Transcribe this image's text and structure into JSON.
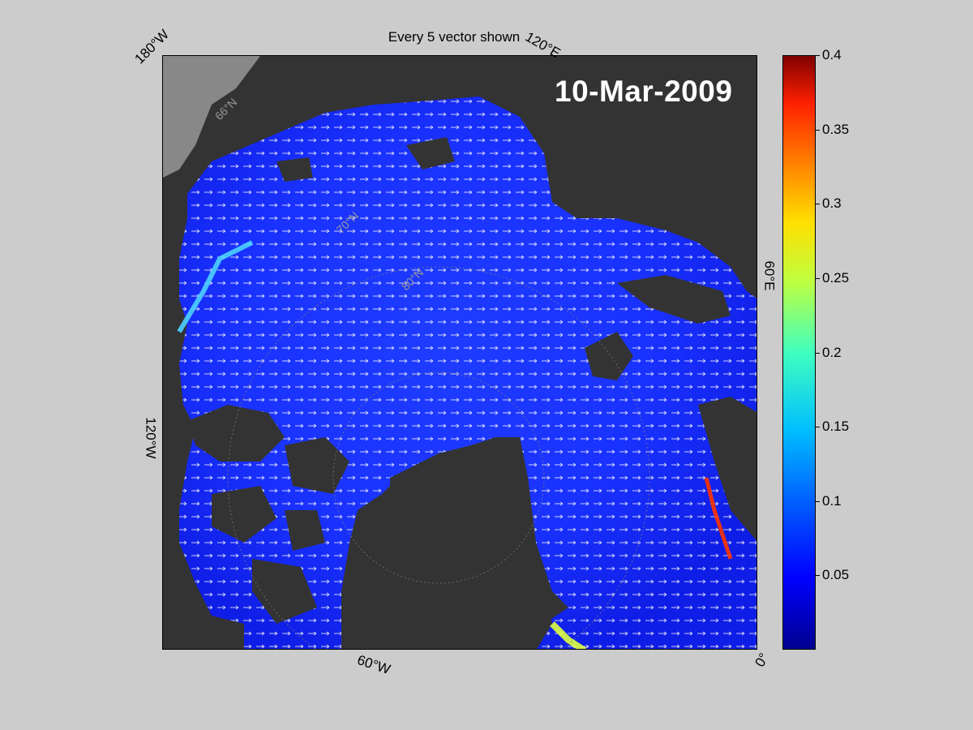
{
  "title": "Every 5 vector shown",
  "date_label": "10-Mar-2009",
  "edge_labels": {
    "top_left": "180°W",
    "top_right": "120°E",
    "right": "60°E",
    "left": "120°W",
    "bottom": "60°W",
    "bottom_right": "0°"
  },
  "inner_labels": [
    "66°N",
    "70°N",
    "80°N"
  ],
  "colorbar": {
    "min": 0,
    "max": 0.4,
    "ticks": [
      "0.4",
      "0.35",
      "0.3",
      "0.25",
      "0.2",
      "0.15",
      "0.1",
      "0.05"
    ],
    "tick_values": [
      0.4,
      0.35,
      0.3,
      0.25,
      0.2,
      0.15,
      0.1,
      0.05
    ]
  },
  "colors": {
    "background": "#cccccc",
    "land": "#333333",
    "ocean": "#1a2cff",
    "arrows": "#ffffff"
  }
}
